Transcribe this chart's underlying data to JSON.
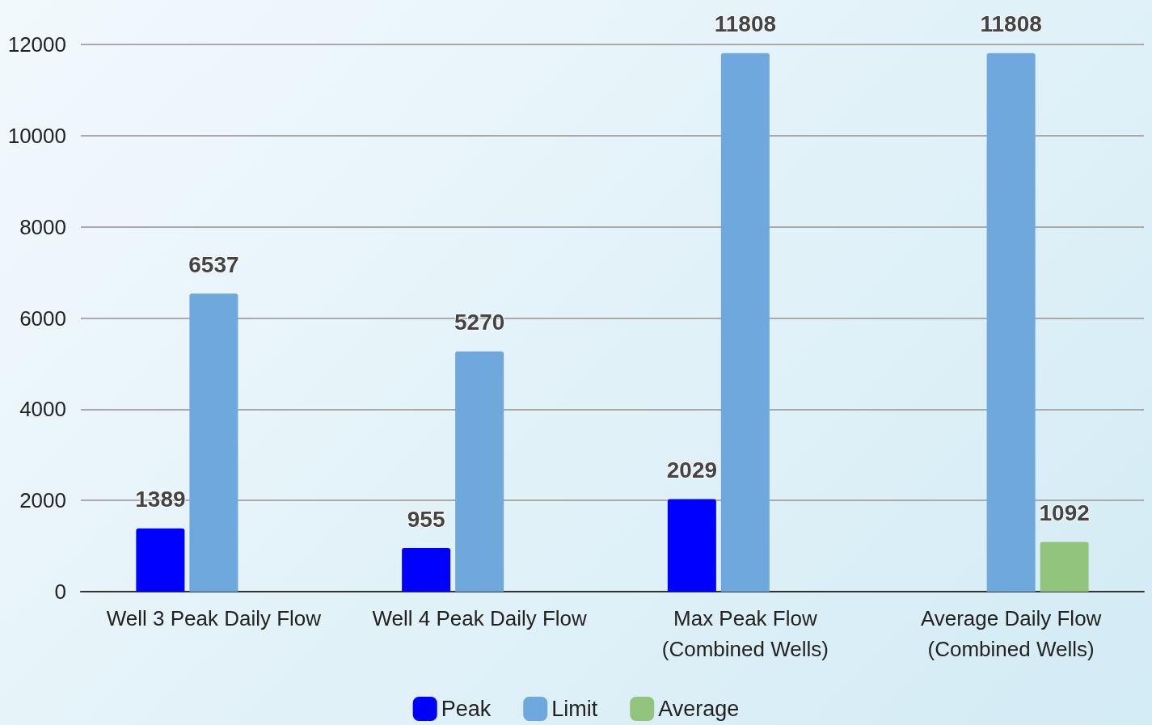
{
  "chart_data": {
    "type": "bar",
    "categories": [
      "Well 3 Peak Daily Flow",
      "Well 4 Peak Daily Flow",
      "Max Peak Flow\n(Combined Wells)",
      "Average Daily Flow\n(Combined Wells)"
    ],
    "series": [
      {
        "name": "Peak",
        "color": "#0000ff",
        "values": [
          1389,
          955,
          2029,
          null
        ]
      },
      {
        "name": "Limit",
        "color": "#6fa8dc",
        "values": [
          6537,
          5270,
          11808,
          11808
        ]
      },
      {
        "name": "Average",
        "color": "#93c47d",
        "values": [
          null,
          null,
          null,
          1092
        ]
      }
    ],
    "ylim": [
      0,
      12000
    ],
    "yticks": [
      0,
      2000,
      4000,
      6000,
      8000,
      10000,
      12000
    ],
    "grid": "y",
    "legend": "bottom",
    "data_labels": true
  }
}
